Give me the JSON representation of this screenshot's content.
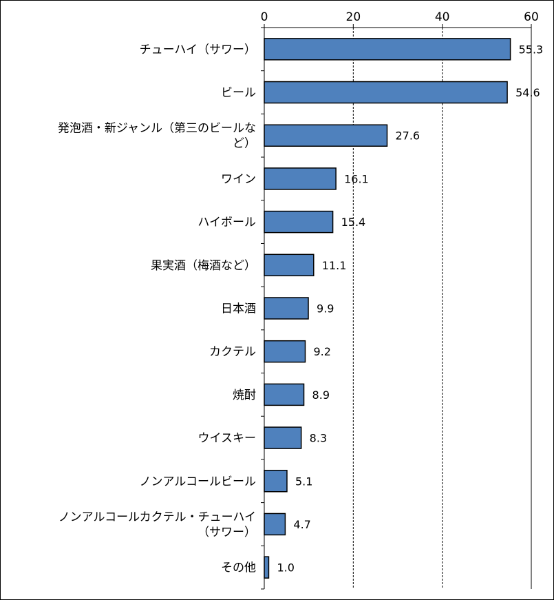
{
  "chart_data": {
    "type": "bar",
    "orientation": "horizontal",
    "title": "",
    "xlabel": "",
    "ylabel": "",
    "xlim": [
      0,
      60
    ],
    "ticks": [
      "0",
      "20",
      "40",
      "60"
    ],
    "tick_values": [
      0,
      20,
      40,
      60
    ],
    "categories": [
      [
        "チューハイ（サワー）"
      ],
      [
        "ビール"
      ],
      [
        "発泡酒・新ジャンル（第三のビールな",
        "ど）"
      ],
      [
        "ワイン"
      ],
      [
        "ハイボール"
      ],
      [
        "果実酒（梅酒など）"
      ],
      [
        "日本酒"
      ],
      [
        "カクテル"
      ],
      [
        "焼酎"
      ],
      [
        "ウイスキー"
      ],
      [
        "ノンアルコールビール"
      ],
      [
        "ノンアルコールカクテル・チューハイ",
        "（サワー）"
      ],
      [
        "その他"
      ]
    ],
    "values": [
      55.3,
      54.6,
      27.6,
      16.1,
      15.4,
      11.1,
      9.9,
      9.2,
      8.9,
      8.3,
      5.1,
      4.7,
      1.0
    ],
    "value_labels": [
      "55.3",
      "54.6",
      "27.6",
      "16.1",
      "15.4",
      "11.1",
      "9.9",
      "9.2",
      "8.9",
      "8.3",
      "5.1",
      "4.7",
      "1.0"
    ],
    "bar_color": "#4f81bd",
    "bar_outline": "#000000",
    "grid": "vertical-dashed",
    "axis_position": "top"
  }
}
